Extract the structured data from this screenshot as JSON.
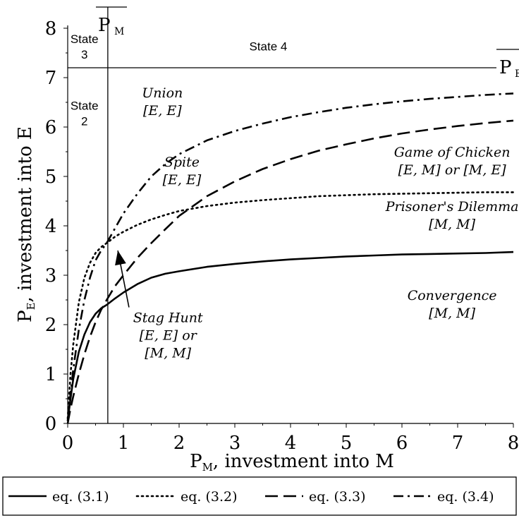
{
  "chart_data": {
    "type": "line",
    "xlim": [
      0,
      8
    ],
    "ylim": [
      0,
      8
    ],
    "x_ticks": [
      "0",
      "1",
      "2",
      "3",
      "4",
      "5",
      "6",
      "7",
      "8"
    ],
    "y_ticks": [
      "0",
      "1",
      "2",
      "3",
      "4",
      "5",
      "6",
      "7",
      "8"
    ],
    "xlabel": {
      "main": "P",
      "sub": "M",
      "rest": ", investment into M"
    },
    "ylabel": {
      "main": "P",
      "sub": "E",
      "rest": ", investment into E"
    },
    "grid": false,
    "legend": "bottom",
    "series": [
      {
        "name": "eq. (3.1)",
        "style": "solid",
        "x": [
          0.0,
          0.05,
          0.1,
          0.2,
          0.3,
          0.4,
          0.5,
          0.6,
          0.7,
          0.85,
          1.0,
          1.25,
          1.5,
          1.75,
          2.0,
          2.5,
          3.0,
          3.5,
          4.0,
          4.5,
          5.0,
          5.5,
          6.0,
          6.5,
          7.0,
          7.5,
          8.0
        ],
        "y": [
          0.05,
          0.5,
          0.9,
          1.45,
          1.8,
          2.05,
          2.22,
          2.33,
          2.4,
          2.53,
          2.65,
          2.82,
          2.95,
          3.03,
          3.08,
          3.17,
          3.23,
          3.28,
          3.32,
          3.35,
          3.38,
          3.4,
          3.42,
          3.43,
          3.44,
          3.45,
          3.47
        ]
      },
      {
        "name": "eq. (3.2)",
        "style": "dotted",
        "x": [
          0.0,
          0.05,
          0.1,
          0.2,
          0.3,
          0.4,
          0.5,
          0.6,
          0.7,
          0.85,
          1.0,
          1.25,
          1.5,
          1.75,
          2.0,
          2.5,
          3.0,
          3.5,
          4.0,
          4.5,
          5.0,
          5.5,
          6.0,
          6.5,
          7.0,
          7.5,
          8.0
        ],
        "y": [
          0.1,
          1.0,
          1.6,
          2.45,
          2.95,
          3.25,
          3.45,
          3.57,
          3.65,
          3.78,
          3.88,
          4.02,
          4.13,
          4.22,
          4.3,
          4.4,
          4.47,
          4.52,
          4.56,
          4.6,
          4.62,
          4.64,
          4.65,
          4.66,
          4.67,
          4.68,
          4.68
        ]
      },
      {
        "name": "eq. (3.3)",
        "style": "dashed",
        "x": [
          0.0,
          0.05,
          0.1,
          0.2,
          0.3,
          0.4,
          0.5,
          0.6,
          0.7,
          0.85,
          1.0,
          1.25,
          1.5,
          1.75,
          2.0,
          2.5,
          3.0,
          3.5,
          4.0,
          4.5,
          5.0,
          5.5,
          6.0,
          6.5,
          7.0,
          7.5,
          8.0
        ],
        "y": [
          0.0,
          0.3,
          0.55,
          1.0,
          1.4,
          1.75,
          2.05,
          2.3,
          2.5,
          2.78,
          3.0,
          3.35,
          3.65,
          3.93,
          4.2,
          4.6,
          4.9,
          5.15,
          5.35,
          5.52,
          5.65,
          5.77,
          5.87,
          5.95,
          6.02,
          6.08,
          6.13
        ]
      },
      {
        "name": "eq. (3.4)",
        "style": "dash-dot",
        "x": [
          0.0,
          0.05,
          0.1,
          0.2,
          0.3,
          0.4,
          0.5,
          0.6,
          0.7,
          0.85,
          1.0,
          1.25,
          1.5,
          1.75,
          2.0,
          2.5,
          3.0,
          3.5,
          4.0,
          4.5,
          5.0,
          5.5,
          6.0,
          6.5,
          7.0,
          7.5,
          8.0
        ],
        "y": [
          0.05,
          0.6,
          1.1,
          1.9,
          2.5,
          2.95,
          3.3,
          3.5,
          3.65,
          3.95,
          4.25,
          4.65,
          5.0,
          5.25,
          5.45,
          5.73,
          5.92,
          6.07,
          6.2,
          6.3,
          6.39,
          6.46,
          6.52,
          6.57,
          6.61,
          6.65,
          6.68
        ]
      }
    ],
    "reference_lines": {
      "vertical": {
        "x": 0.72,
        "label_main": "P",
        "label_sub": "M"
      },
      "horizontal": {
        "y": 7.2,
        "label_main": "P",
        "label_sub": "E"
      }
    },
    "state_labels": [
      {
        "lines": [
          "State",
          "3"
        ],
        "x": 0.3,
        "y": 7.7
      },
      {
        "lines": [
          "State 4"
        ],
        "x": 3.6,
        "y": 7.55
      },
      {
        "lines": [
          "State",
          "2"
        ],
        "x": 0.3,
        "y": 6.35
      }
    ],
    "region_labels": [
      {
        "lines": [
          "Union",
          "[E, E]"
        ],
        "x": 1.7,
        "y": 6.6
      },
      {
        "lines": [
          "Spite",
          "[E, E]"
        ],
        "x": 2.05,
        "y": 5.2
      },
      {
        "lines": [
          "Game of Chicken",
          "[E, M] or [M, E]"
        ],
        "x": 6.9,
        "y": 5.4
      },
      {
        "lines": [
          "Prisoner's Dilemma",
          "[M, M]"
        ],
        "x": 6.9,
        "y": 4.3
      },
      {
        "lines": [
          "Convergence",
          "[M, M]"
        ],
        "x": 6.9,
        "y": 2.5
      },
      {
        "lines": [
          "Stag Hunt",
          "[E, E] or",
          "[M, M]"
        ],
        "x": 1.8,
        "y": 2.05,
        "anchor": "start"
      }
    ],
    "arrow": {
      "from": [
        1.1,
        2.35
      ],
      "to": [
        0.9,
        3.5
      ]
    }
  }
}
